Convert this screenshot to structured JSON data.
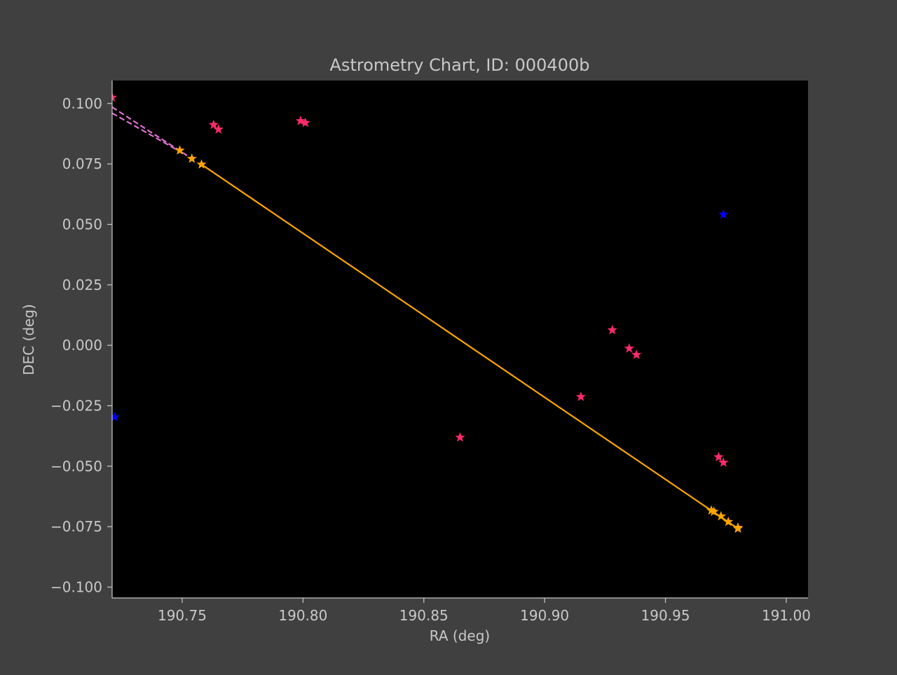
{
  "chart_data": {
    "type": "scatter",
    "title": "Astrometry Chart, ID: 000400b",
    "xlabel": "RA (deg)",
    "ylabel": "DEC (deg)",
    "xlim": [
      190.721,
      191.009
    ],
    "ylim": [
      -0.1045,
      0.1095
    ],
    "xticks": [
      {
        "value": 190.75,
        "label": "190.75"
      },
      {
        "value": 190.8,
        "label": "190.80"
      },
      {
        "value": 190.85,
        "label": "190.85"
      },
      {
        "value": 190.9,
        "label": "190.90"
      },
      {
        "value": 190.95,
        "label": "190.95"
      },
      {
        "value": 191.0,
        "label": "191.00"
      }
    ],
    "yticks": [
      {
        "value": 0.1,
        "label": "0.100"
      },
      {
        "value": 0.075,
        "label": "0.075"
      },
      {
        "value": 0.05,
        "label": "0.050"
      },
      {
        "value": 0.025,
        "label": "0.025"
      },
      {
        "value": 0.0,
        "label": "0.000"
      },
      {
        "value": -0.025,
        "label": "−0.025"
      },
      {
        "value": -0.05,
        "label": "−0.050"
      },
      {
        "value": -0.075,
        "label": "−0.075"
      },
      {
        "value": -0.1,
        "label": "−0.100"
      }
    ],
    "grid": false,
    "colors": {
      "figure_bg": "#404040",
      "axes_bg": "#000000",
      "text": "#c8c8c8",
      "spine": "#c8c8c8"
    },
    "lines": [
      {
        "color": "#ffa500",
        "style": "solid",
        "x": [
          190.758,
          190.98
        ],
        "y": [
          0.0748,
          -0.0758
        ]
      },
      {
        "color": "#e070d0",
        "style": "dashed",
        "x": [
          190.721,
          190.752
        ],
        "y": [
          0.0985,
          0.0785
        ]
      },
      {
        "color": "#e070d0",
        "style": "dashed",
        "x": [
          190.721,
          190.752
        ],
        "y": [
          0.096,
          0.0785
        ]
      }
    ],
    "series": [
      {
        "color": "#ff2a6a",
        "points": [
          [
            190.721,
            0.1025
          ],
          [
            190.763,
            0.0912
          ],
          [
            190.765,
            0.0893
          ],
          [
            190.799,
            0.0928
          ],
          [
            190.801,
            0.092
          ],
          [
            190.865,
            -0.0381
          ],
          [
            190.915,
            -0.0213
          ],
          [
            190.928,
            0.0063
          ],
          [
            190.935,
            -0.0013
          ],
          [
            190.938,
            -0.0039
          ],
          [
            190.972,
            -0.0462
          ],
          [
            190.974,
            -0.0485
          ]
        ]
      },
      {
        "color": "#0000ff",
        "points": [
          [
            190.974,
            0.0541
          ],
          [
            190.722,
            -0.0297
          ]
        ]
      },
      {
        "color": "#ffa500",
        "points": [
          [
            190.749,
            0.0806
          ],
          [
            190.754,
            0.0772
          ],
          [
            190.758,
            0.0748
          ],
          [
            190.969,
            -0.0683
          ],
          [
            190.97,
            -0.0688
          ],
          [
            190.973,
            -0.0707
          ],
          [
            190.976,
            -0.073
          ],
          [
            190.98,
            -0.0754
          ],
          [
            190.98,
            -0.0758
          ]
        ]
      }
    ]
  }
}
